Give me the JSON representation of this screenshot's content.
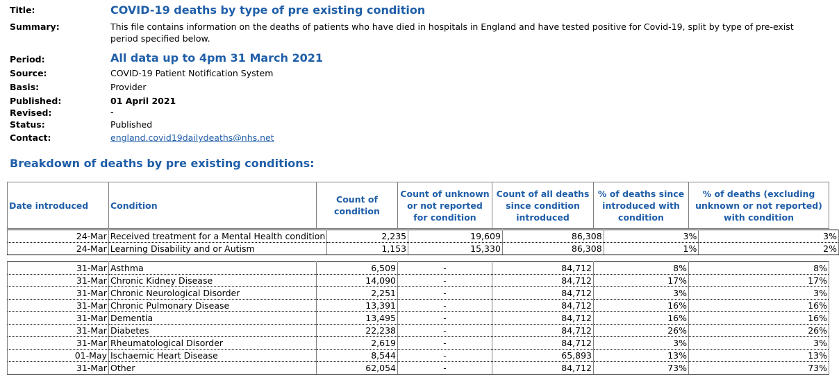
{
  "meta": {
    "title_label": "Title:",
    "title": "COVID-19 deaths by type of pre existing condition",
    "summary_label": "Summary:",
    "summary": "This file contains information on the deaths of patients who have died in hospitals in England and have tested positive for Covid-19, split by type of pre-existing condition, for the period specified below.",
    "summary_line1": "This file contains information on the deaths of patients who have died in hospitals in England and have tested positive for Covid-19, split by type of pre-exist",
    "summary_line2": "period specified below.",
    "period_label": "Period:",
    "period": "All data up to 4pm 31 March 2021",
    "source_label": "Source:",
    "source": "COVID-19 Patient Notification System",
    "basis_label": "Basis:",
    "basis": "Provider",
    "published_label": "Published:",
    "published": "01 April 2021",
    "revised_label": "Revised:",
    "revised": "-",
    "status_label": "Status:",
    "status": "Published",
    "contact_label": "Contact:",
    "contact": "england.covid19dailydeaths@nhs.net"
  },
  "section_title": "Breakdown of deaths by pre existing conditions:",
  "table": {
    "headers": [
      "Date introduced",
      "Condition",
      "Count of condition",
      "Count of unknown or not reported for condition",
      "Count of all deaths since condition introduced",
      "% of deaths since introduced with condition",
      "% of deaths (excluding unknown or not reported) with condition"
    ],
    "group1": [
      [
        "24-Mar",
        "Received treatment for a Mental Health condition",
        "2,235",
        "19,609",
        "86,308",
        "3%",
        "3%"
      ],
      [
        "24-Mar",
        "Learning Disability and or Autism",
        "1,153",
        "15,330",
        "86,308",
        "1%",
        "2%"
      ]
    ],
    "group2": [
      [
        "31-Mar",
        "Asthma",
        "6,509",
        "-",
        "84,712",
        "8%",
        "8%"
      ],
      [
        "31-Mar",
        "Chronic Kidney Disease",
        "14,090",
        "-",
        "84,712",
        "17%",
        "17%"
      ],
      [
        "31-Mar",
        "Chronic Neurological Disorder",
        "2,251",
        "-",
        "84,712",
        "3%",
        "3%"
      ],
      [
        "31-Mar",
        "Chronic Pulmonary Disease",
        "13,391",
        "-",
        "84,712",
        "16%",
        "16%"
      ],
      [
        "31-Mar",
        "Dementia",
        "13,495",
        "-",
        "84,712",
        "16%",
        "16%"
      ],
      [
        "31-Mar",
        "Diabetes",
        "22,238",
        "-",
        "84,712",
        "26%",
        "26%"
      ],
      [
        "31-Mar",
        "Rheumatological Disorder",
        "2,619",
        "-",
        "84,712",
        "3%",
        "3%"
      ],
      [
        "01-May",
        "Ischaemic Heart Disease",
        "8,544",
        "-",
        "65,893",
        "13%",
        "13%"
      ],
      [
        "31-Mar",
        "Other",
        "62,054",
        "-",
        "84,712",
        "73%",
        "73%"
      ]
    ]
  }
}
